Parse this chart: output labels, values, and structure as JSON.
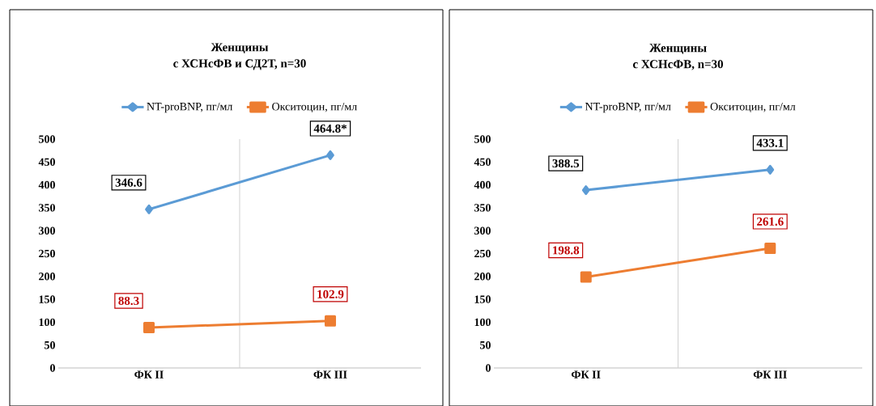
{
  "chart_data": [
    {
      "type": "line",
      "title": "Женщины",
      "subtitle": "с ХСНсФВ и СД2Т, n=30",
      "categories": [
        "ФК II",
        "ФК III"
      ],
      "ylim": [
        0,
        500
      ],
      "yticks": [
        0,
        50,
        100,
        150,
        200,
        250,
        300,
        350,
        400,
        450,
        500
      ],
      "legend": "top",
      "grid": false,
      "series": [
        {
          "name": "NT-proBNP, пг/мл",
          "color": "#5b9bd5",
          "marker": "diamond",
          "values": [
            346.6,
            464.8
          ],
          "value_labels": [
            "346.6",
            "464.8*"
          ]
        },
        {
          "name": "Окситоцин, пг/мл",
          "color": "#ed7d31",
          "marker": "square",
          "values": [
            88.3,
            102.9
          ],
          "value_labels": [
            "88.3",
            "102.9"
          ]
        }
      ]
    },
    {
      "type": "line",
      "title": "Женщины",
      "subtitle": "с ХСНсФВ, n=30",
      "categories": [
        "ФК II",
        "ФК III"
      ],
      "ylim": [
        0,
        500
      ],
      "yticks": [
        0,
        50,
        100,
        150,
        200,
        250,
        300,
        350,
        400,
        450,
        500
      ],
      "legend": "top",
      "grid": false,
      "series": [
        {
          "name": "NT-proBNP, пг/мл",
          "color": "#5b9bd5",
          "marker": "diamond",
          "values": [
            388.5,
            433.1
          ],
          "value_labels": [
            "388.5",
            "433.1"
          ]
        },
        {
          "name": "Окситоцин, пг/мл",
          "color": "#ed7d31",
          "marker": "square",
          "values": [
            198.8,
            261.6
          ],
          "value_labels": [
            "198.8",
            "261.6"
          ]
        }
      ]
    }
  ]
}
